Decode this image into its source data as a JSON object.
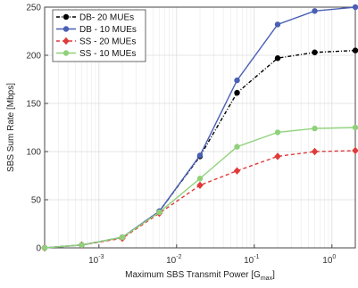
{
  "chart_data": {
    "type": "line",
    "xscale": "log",
    "xlim": [
      0.0002,
      2
    ],
    "ylim": [
      0,
      250
    ],
    "xlabel": "Maximum SBS Transmit Power [G",
    "xlabel_sub": "max",
    "xlabel_end": "]",
    "ylabel": "SBS Sum Rate [Mbps]",
    "grid": true,
    "legend_position": "top-left",
    "x_ticks": [
      {
        "value": 0.001,
        "base": "10",
        "exp": "-3"
      },
      {
        "value": 0.01,
        "base": "10",
        "exp": "-2"
      },
      {
        "value": 0.1,
        "base": "10",
        "exp": "-1"
      },
      {
        "value": 1,
        "base": "10",
        "exp": "0"
      }
    ],
    "y_ticks": [
      "0",
      "50",
      "100",
      "150",
      "200",
      "250"
    ],
    "x": [
      0.0002,
      0.0006,
      0.002,
      0.006,
      0.02,
      0.06,
      0.2,
      0.6,
      2
    ],
    "series": [
      {
        "name": "DB- 20 MUEs",
        "color": "#000000",
        "dash": "4,2,1,2",
        "marker": "circle",
        "fill": "#000000",
        "values": [
          0,
          3,
          11,
          38,
          95,
          161,
          197,
          203,
          205
        ]
      },
      {
        "name": "DB - 10 MUEs",
        "color": "#4a5fb5",
        "dash": "",
        "marker": "circle",
        "fill": "#4a5fb5",
        "values": [
          0,
          3,
          11,
          38,
          96,
          174,
          232,
          246,
          250
        ]
      },
      {
        "name": "SS - 20 MUEs",
        "color": "#e03a3a",
        "dash": "4,3",
        "marker": "diamond",
        "fill": "#e03a3a",
        "values": [
          0,
          3,
          10,
          36,
          65,
          80,
          95,
          100,
          101
        ]
      },
      {
        "name": "SS - 10 MUEs",
        "color": "#8fd17a",
        "dash": "",
        "marker": "circle",
        "fill": "#8fd17a",
        "values": [
          0,
          3,
          11,
          37,
          72,
          105,
          120,
          124,
          125
        ]
      }
    ]
  }
}
